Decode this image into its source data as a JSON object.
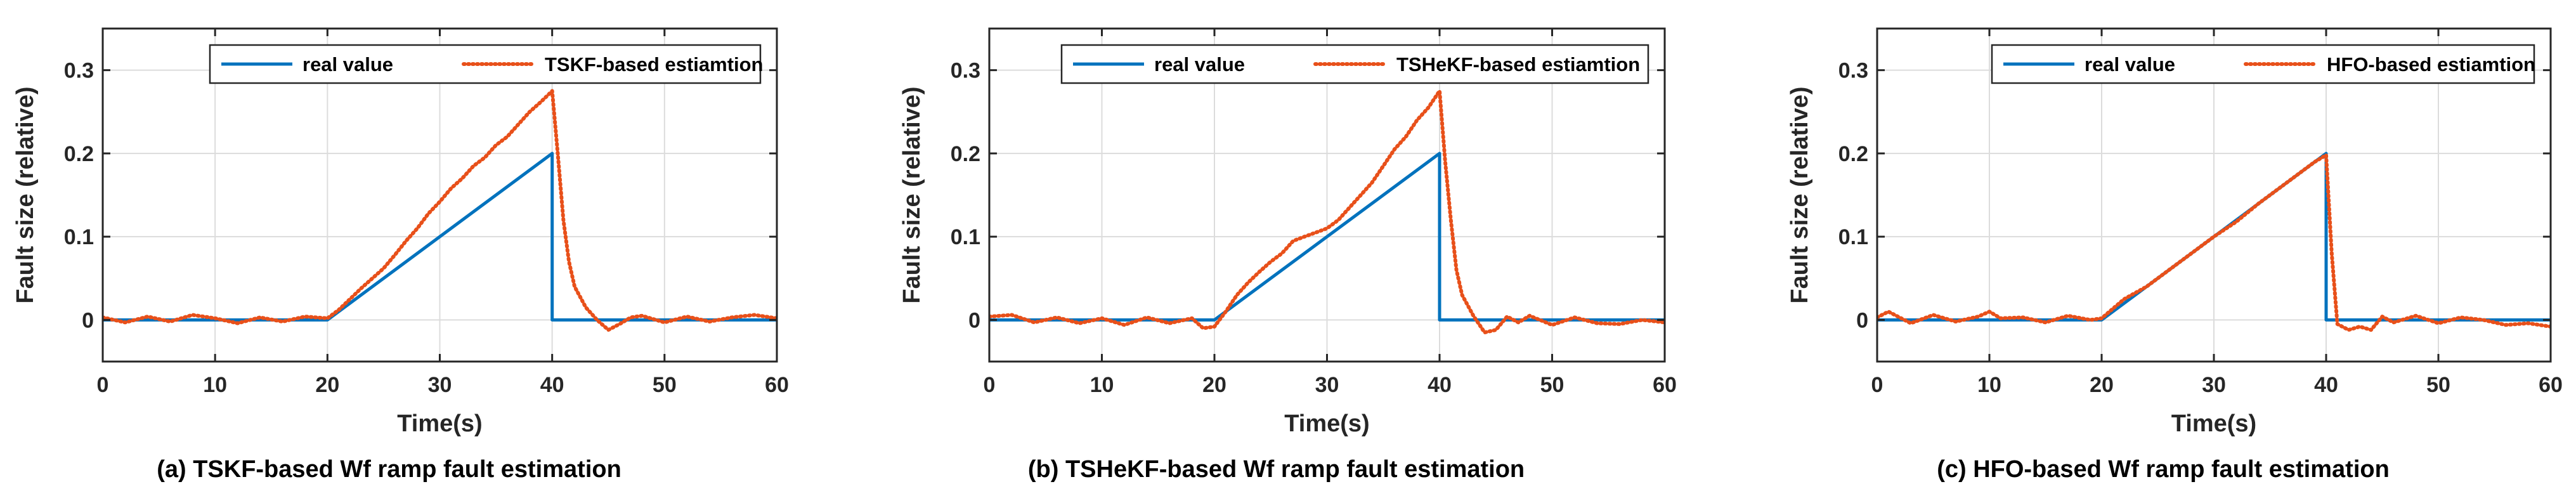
{
  "chart_data": [
    {
      "type": "line",
      "caption": "(a) TSKF-based Wf ramp fault estimation",
      "xlabel": "Time(s)",
      "ylabel": "Fault size (relative)",
      "xlim": [
        0,
        60
      ],
      "ylim": [
        -0.05,
        0.35
      ],
      "xticks": [
        0,
        10,
        20,
        30,
        40,
        50,
        60
      ],
      "yticks": [
        0,
        0.1,
        0.2,
        0.3
      ],
      "ytick_labels": [
        "0",
        "0.1",
        "0.2",
        "0.3"
      ],
      "grid": true,
      "legend_position": "top-right",
      "series": [
        {
          "name": "real value",
          "style": "solid",
          "color": "#0072BD",
          "x": [
            0,
            20,
            40,
            40,
            60
          ],
          "y": [
            0,
            0,
            0.2,
            0,
            0
          ]
        },
        {
          "name": "TSKF-based estiamtion",
          "style": "dotted",
          "color": "#E8501A",
          "x": [
            0,
            2,
            4,
            6,
            8,
            10,
            12,
            14,
            16,
            18,
            20,
            21,
            22,
            23,
            24,
            25,
            26,
            27,
            28,
            29,
            30,
            31,
            32,
            33,
            34,
            35,
            36,
            37,
            38,
            39,
            40,
            40.5,
            41,
            41.5,
            42,
            43,
            44,
            45,
            46,
            47,
            48,
            50,
            52,
            54,
            56,
            58,
            60
          ],
          "y": [
            0.003,
            -0.003,
            0.004,
            -0.002,
            0.006,
            0.002,
            -0.004,
            0.003,
            -0.002,
            0.004,
            0.002,
            0.012,
            0.025,
            0.038,
            0.05,
            0.062,
            0.078,
            0.095,
            0.11,
            0.128,
            0.142,
            0.158,
            0.17,
            0.185,
            0.195,
            0.21,
            0.22,
            0.235,
            0.25,
            0.262,
            0.275,
            0.2,
            0.12,
            0.07,
            0.04,
            0.015,
            0.0,
            -0.012,
            -0.005,
            0.003,
            0.005,
            -0.003,
            0.004,
            -0.002,
            0.003,
            0.006,
            0.002
          ]
        }
      ]
    },
    {
      "type": "line",
      "caption": "(b) TSHeKF-based Wf ramp fault estimation",
      "xlabel": "Time(s)",
      "ylabel": "Fault size (relative)",
      "xlim": [
        0,
        60
      ],
      "ylim": [
        -0.05,
        0.35
      ],
      "xticks": [
        0,
        10,
        20,
        30,
        40,
        50,
        60
      ],
      "yticks": [
        0,
        0.1,
        0.2,
        0.3
      ],
      "ytick_labels": [
        "0",
        "0.1",
        "0.2",
        "0.3"
      ],
      "grid": true,
      "legend_position": "top-right",
      "series": [
        {
          "name": "real value",
          "style": "solid",
          "color": "#0072BD",
          "x": [
            0,
            20,
            40,
            40,
            60
          ],
          "y": [
            0,
            0,
            0.2,
            0,
            0
          ]
        },
        {
          "name": "TSHeKF-based estiamtion",
          "style": "dotted",
          "color": "#E8501A",
          "x": [
            0,
            2,
            4,
            6,
            8,
            10,
            12,
            14,
            16,
            18,
            19,
            20,
            21,
            22,
            23,
            24,
            25,
            26,
            27,
            28,
            29,
            30,
            31,
            32,
            33,
            34,
            35,
            36,
            37,
            38,
            39,
            40,
            40.5,
            41,
            41.5,
            42,
            43,
            44,
            45,
            46,
            47,
            48,
            50,
            52,
            54,
            56,
            58,
            60
          ],
          "y": [
            0.004,
            0.006,
            -0.003,
            0.003,
            -0.004,
            0.002,
            -0.006,
            0.003,
            -0.004,
            0.002,
            -0.01,
            -0.008,
            0.01,
            0.03,
            0.045,
            0.058,
            0.07,
            0.08,
            0.095,
            0.1,
            0.105,
            0.11,
            0.12,
            0.135,
            0.15,
            0.165,
            0.185,
            0.205,
            0.22,
            0.24,
            0.255,
            0.275,
            0.19,
            0.12,
            0.06,
            0.03,
            0.005,
            -0.015,
            -0.012,
            0.004,
            -0.003,
            0.005,
            -0.006,
            0.003,
            -0.004,
            -0.005,
            0.0,
            -0.003
          ]
        }
      ]
    },
    {
      "type": "line",
      "caption": "(c) HFO-based Wf ramp fault estimation",
      "xlabel": "Time(s)",
      "ylabel": "Fault size (relative)",
      "xlim": [
        0,
        60
      ],
      "ylim": [
        -0.05,
        0.35
      ],
      "xticks": [
        0,
        10,
        20,
        30,
        40,
        50,
        60
      ],
      "yticks": [
        0,
        0.1,
        0.2,
        0.3
      ],
      "ytick_labels": [
        "0",
        "0.1",
        "0.2",
        "0.3"
      ],
      "grid": true,
      "legend_position": "top-right",
      "series": [
        {
          "name": "real value",
          "style": "solid",
          "color": "#0072BD",
          "x": [
            0,
            20,
            40,
            40,
            60
          ],
          "y": [
            0,
            0,
            0.2,
            0,
            0
          ]
        },
        {
          "name": "HFO-based estiamtion",
          "style": "dotted",
          "color": "#E8501A",
          "x": [
            0,
            1,
            3,
            5,
            7,
            9,
            10,
            11,
            13,
            15,
            17,
            19,
            20,
            22,
            24,
            26,
            28,
            30,
            32,
            34,
            36,
            38,
            39,
            40,
            40.5,
            41,
            42,
            43,
            44,
            45,
            46,
            48,
            50,
            52,
            54,
            56,
            58,
            60
          ],
          "y": [
            0.003,
            0.01,
            -0.004,
            0.006,
            -0.002,
            0.004,
            0.01,
            0.002,
            0.003,
            -0.003,
            0.005,
            0.0,
            0.002,
            0.025,
            0.04,
            0.06,
            0.08,
            0.1,
            0.118,
            0.14,
            0.16,
            0.18,
            0.19,
            0.198,
            0.08,
            -0.005,
            -0.012,
            -0.008,
            -0.012,
            0.004,
            -0.003,
            0.005,
            -0.004,
            0.003,
            0.0,
            -0.006,
            -0.004,
            -0.008
          ]
        }
      ]
    }
  ]
}
